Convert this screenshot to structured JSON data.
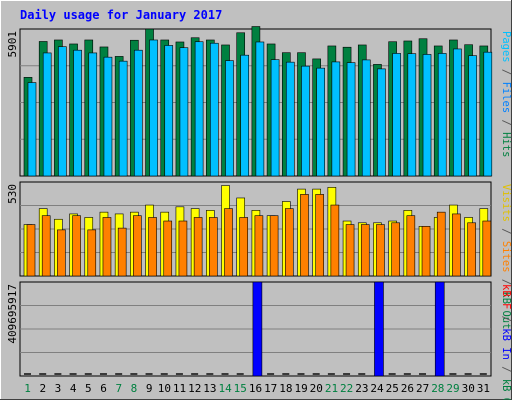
{
  "chart_data": {
    "type": "bar",
    "title": "Daily usage for January 2017",
    "categories": [
      "1",
      "2",
      "3",
      "4",
      "5",
      "6",
      "7",
      "8",
      "9",
      "10",
      "11",
      "12",
      "13",
      "14",
      "15",
      "16",
      "17",
      "18",
      "19",
      "20",
      "21",
      "22",
      "23",
      "24",
      "25",
      "26",
      "27",
      "28",
      "29",
      "30",
      "31"
    ],
    "weekend_days": [
      "1",
      "7",
      "8",
      "14",
      "15",
      "21",
      "22",
      "28",
      "29"
    ],
    "panels": [
      {
        "name": "hits-files-pages",
        "ymax_label": "5901",
        "ymax": 5901,
        "right_label": [
          {
            "text": "Pages",
            "color": "#00c0ff"
          },
          {
            "text": " / ",
            "color": "#555555"
          },
          {
            "text": "Files",
            "color": "#0080ff"
          },
          {
            "text": " / ",
            "color": "#555555"
          },
          {
            "text": "Hits",
            "color": "#008040"
          }
        ],
        "series": [
          {
            "name": "Hits",
            "color": "#008040",
            "values": [
              3960,
              5400,
              5460,
              5300,
              5460,
              5180,
              4800,
              5450,
              5900,
              5460,
              5380,
              5550,
              5460,
              5260,
              5750,
              6000,
              5300,
              4950,
              4950,
              4700,
              5220,
              5170,
              5260,
              4480,
              5390,
              5420,
              5510,
              5220,
              5460,
              5270,
              5220
            ]
          },
          {
            "name": "Files",
            "color": "#0080ff",
            "values": [
              0,
              0,
              0,
              0,
              0,
              0,
              0,
              0,
              0,
              0,
              0,
              0,
              0,
              0,
              0,
              0,
              0,
              0,
              0,
              0,
              0,
              0,
              0,
              0,
              0,
              0,
              0,
              0,
              0,
              0,
              0
            ]
          },
          {
            "name": "Pages",
            "color": "#00c0ff",
            "values": [
              3750,
              4940,
              5190,
              5050,
              4940,
              4770,
              4610,
              5050,
              5460,
              5240,
              5150,
              5390,
              5330,
              4630,
              4850,
              5380,
              4670,
              4570,
              4410,
              4330,
              4580,
              4550,
              4660,
              4300,
              4920,
              4910,
              4880,
              4920,
              5100,
              4830,
              4970
            ]
          }
        ]
      },
      {
        "name": "visits-sites-kbout",
        "ymax_label": "530",
        "ymax": 530,
        "right_label": [
          {
            "text": "Visits",
            "color": "#e0c000"
          },
          {
            "text": " / ",
            "color": "#555555"
          },
          {
            "text": "Sites",
            "color": "#ff8000"
          },
          {
            "text": " / ",
            "color": "#555555"
          },
          {
            "text": "kB Out",
            "color": "#008040"
          }
        ],
        "series": [
          {
            "name": "Visits",
            "color": "#ffff00",
            "values": [
              290,
              380,
              320,
              350,
              330,
              360,
              350,
              360,
              400,
              360,
              390,
              380,
              370,
              510,
              440,
              370,
              340,
              420,
              490,
              490,
              500,
              310,
              300,
              300,
              310,
              370,
              280,
              330,
              400,
              330,
              380
            ]
          },
          {
            "name": "Sites",
            "color": "#ff8000",
            "values": [
              290,
              340,
              260,
              340,
              260,
              330,
              270,
              340,
              330,
              310,
              310,
              330,
              330,
              380,
              330,
              340,
              340,
              380,
              460,
              460,
              400,
              290,
              290,
              290,
              300,
              340,
              280,
              360,
              350,
              300,
              310
            ]
          },
          {
            "name": "kB Out",
            "color": "#008040",
            "values": [
              0,
              0,
              0,
              0,
              0,
              0,
              0,
              0,
              0,
              0,
              0,
              0,
              0,
              0,
              0,
              0,
              0,
              0,
              0,
              0,
              0,
              0,
              0,
              0,
              0,
              0,
              0,
              0,
              0,
              0,
              0
            ]
          }
        ]
      },
      {
        "name": "kbf-kbin-kbout",
        "ymax_label": "409695917",
        "ymax": 409695917,
        "right_label": [
          {
            "text": "kB F",
            "color": "#ff0000"
          },
          {
            "text": " / ",
            "color": "#555555"
          },
          {
            "text": "kB In",
            "color": "#0000ff"
          },
          {
            "text": " / ",
            "color": "#555555"
          },
          {
            "text": "kB Out",
            "color": "#008040"
          }
        ],
        "series": [
          {
            "name": "kB In",
            "color": "#0000ff",
            "values": [
              0,
              0,
              0,
              0,
              0,
              0,
              0,
              0,
              0,
              0,
              0,
              0,
              0,
              0,
              0,
              409695917,
              0,
              0,
              0,
              0,
              0,
              0,
              0,
              409695917,
              0,
              0,
              0,
              409695917,
              0,
              0,
              0
            ]
          },
          {
            "name": "kB F",
            "color": "#ff0000",
            "values": [
              0,
              0,
              0,
              0,
              0,
              0,
              0,
              0,
              0,
              0,
              0,
              0,
              0,
              0,
              0,
              0,
              0,
              0,
              0,
              0,
              0,
              0,
              0,
              0,
              0,
              0,
              0,
              0,
              0,
              0,
              0
            ]
          }
        ]
      }
    ]
  }
}
